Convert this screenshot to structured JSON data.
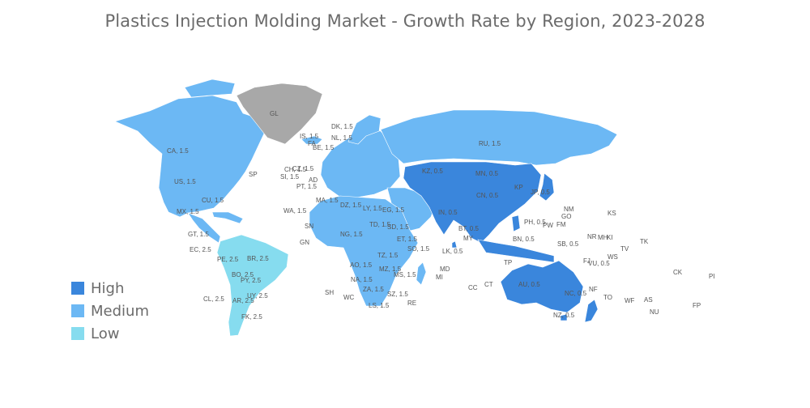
{
  "title": "Plastics Injection Molding Market - Growth Rate by Region, 2023-2028",
  "colors": {
    "high": "#3a86dc",
    "medium": "#6cb8f4",
    "low": "#86dcef",
    "nodata": "#a8a8a8"
  },
  "legend": [
    {
      "label": "High",
      "level": "high"
    },
    {
      "label": "Medium",
      "level": "medium"
    },
    {
      "label": "Low",
      "level": "low"
    }
  ],
  "regions": [
    {
      "name": "North America",
      "level": "medium"
    },
    {
      "name": "Europe",
      "level": "medium"
    },
    {
      "name": "Russia",
      "level": "medium"
    },
    {
      "name": "Africa",
      "level": "medium"
    },
    {
      "name": "Middle East",
      "level": "medium"
    },
    {
      "name": "Asia-Pacific",
      "level": "high"
    },
    {
      "name": "Australia & New Zealand",
      "level": "high"
    },
    {
      "name": "South America",
      "level": "low"
    },
    {
      "name": "Greenland",
      "level": "nodata"
    }
  ],
  "labels": [
    {
      "id": "gl",
      "t": "GL"
    },
    {
      "id": "ca",
      "t": "CA, 1.5"
    },
    {
      "id": "us",
      "t": "US, 1.5"
    },
    {
      "id": "mx",
      "t": "MX, 1.5"
    },
    {
      "id": "gt",
      "t": "GT, 1.5"
    },
    {
      "id": "cu",
      "t": "CU, 1.5"
    },
    {
      "id": "ec",
      "t": "EC, 2.5"
    },
    {
      "id": "pe",
      "t": "PE, 2.5"
    },
    {
      "id": "br",
      "t": "BR, 2.5"
    },
    {
      "id": "bo",
      "t": "BO, 2.5"
    },
    {
      "id": "py",
      "t": "PY, 2.5"
    },
    {
      "id": "uy",
      "t": "UY, 2.5"
    },
    {
      "id": "cl",
      "t": "CL, 2.5"
    },
    {
      "id": "ar",
      "t": "AR, 2.5"
    },
    {
      "id": "fk",
      "t": "FK, 2.5"
    },
    {
      "id": "sp",
      "t": "SP"
    },
    {
      "id": "is",
      "t": "IS, 1.5"
    },
    {
      "id": "dk",
      "t": "DK, 1.5"
    },
    {
      "id": "nl",
      "t": "NL, 1.5"
    },
    {
      "id": "be",
      "t": "BE, 1.5"
    },
    {
      "id": "fa",
      "t": "FA"
    },
    {
      "id": "ch",
      "t": "CH, 1.5"
    },
    {
      "id": "cz",
      "t": "CZ, 1.5"
    },
    {
      "id": "si",
      "t": "SI, 1.5"
    },
    {
      "id": "pt",
      "t": "PT, 1.5"
    },
    {
      "id": "ad",
      "t": "AD"
    },
    {
      "id": "ma",
      "t": "MA, 1.5"
    },
    {
      "id": "dz",
      "t": "DZ, 1.5"
    },
    {
      "id": "ly",
      "t": "LY, 1.5"
    },
    {
      "id": "eg",
      "t": "EG, 1.5"
    },
    {
      "id": "wa",
      "t": "WA, 1.5"
    },
    {
      "id": "sn",
      "t": "SN"
    },
    {
      "id": "gn",
      "t": "GN"
    },
    {
      "id": "ng",
      "t": "NG, 1.5"
    },
    {
      "id": "td",
      "t": "TD, 1.5"
    },
    {
      "id": "sd",
      "t": "SD, 1.5"
    },
    {
      "id": "et",
      "t": "ET, 1.5"
    },
    {
      "id": "so",
      "t": "SO, 1.5"
    },
    {
      "id": "tz",
      "t": "TZ, 1.5"
    },
    {
      "id": "ao",
      "t": "AO, 1.5"
    },
    {
      "id": "na",
      "t": "NA, 1.5"
    },
    {
      "id": "za",
      "t": "ZA, 1.5"
    },
    {
      "id": "ls",
      "t": "LS, 1.5"
    },
    {
      "id": "sz",
      "t": "SZ, 1.5"
    },
    {
      "id": "mz",
      "t": "MZ, 1.5"
    },
    {
      "id": "ms",
      "t": "MS, 1.5"
    },
    {
      "id": "md",
      "t": "MD"
    },
    {
      "id": "mi",
      "t": "MI"
    },
    {
      "id": "sh",
      "t": "SH"
    },
    {
      "id": "wc",
      "t": "WC"
    },
    {
      "id": "re",
      "t": "RE"
    },
    {
      "id": "ru",
      "t": "RU, 1.5"
    },
    {
      "id": "kz",
      "t": "KZ, 0.5"
    },
    {
      "id": "mn",
      "t": "MN, 0.5"
    },
    {
      "id": "cn",
      "t": "CN, 0.5"
    },
    {
      "id": "kp",
      "t": "KP"
    },
    {
      "id": "jp",
      "t": "JP, 0.5"
    },
    {
      "id": "in",
      "t": "IN, 0.5"
    },
    {
      "id": "lk",
      "t": "LK, 0.5"
    },
    {
      "id": "bt",
      "t": "BT, 0.5"
    },
    {
      "id": "ph",
      "t": "PH, 0.5"
    },
    {
      "id": "my",
      "t": "MY"
    },
    {
      "id": "bn",
      "t": "BN, 0.5"
    },
    {
      "id": "tp",
      "t": "TP"
    },
    {
      "id": "au",
      "t": "AU, 0.5"
    },
    {
      "id": "nz",
      "t": "NZ, 0.5"
    },
    {
      "id": "nc",
      "t": "NC, 0.5"
    },
    {
      "id": "nf",
      "t": "NF"
    },
    {
      "id": "cc",
      "t": "CC"
    },
    {
      "id": "ct",
      "t": "CT"
    },
    {
      "id": "nm",
      "t": "NM"
    },
    {
      "id": "go",
      "t": "GO"
    },
    {
      "id": "pw",
      "t": "PW"
    },
    {
      "id": "fm",
      "t": "FM"
    },
    {
      "id": "ks",
      "t": "KS"
    },
    {
      "id": "nr",
      "t": "NR"
    },
    {
      "id": "mh",
      "t": "MH"
    },
    {
      "id": "ki",
      "t": "KI"
    },
    {
      "id": "sb",
      "t": "SB, 0.5"
    },
    {
      "id": "tk",
      "t": "TK"
    },
    {
      "id": "tv",
      "t": "TV"
    },
    {
      "id": "ws",
      "t": "WS"
    },
    {
      "id": "fj",
      "t": "FJ"
    },
    {
      "id": "vu",
      "t": "VU, 0.5"
    },
    {
      "id": "to",
      "t": "TO"
    },
    {
      "id": "wf",
      "t": "WF"
    },
    {
      "id": "as",
      "t": "AS"
    },
    {
      "id": "nu",
      "t": "NU"
    },
    {
      "id": "ck",
      "t": "CK"
    },
    {
      "id": "pi",
      "t": "PI"
    },
    {
      "id": "fp",
      "t": "FP"
    }
  ]
}
